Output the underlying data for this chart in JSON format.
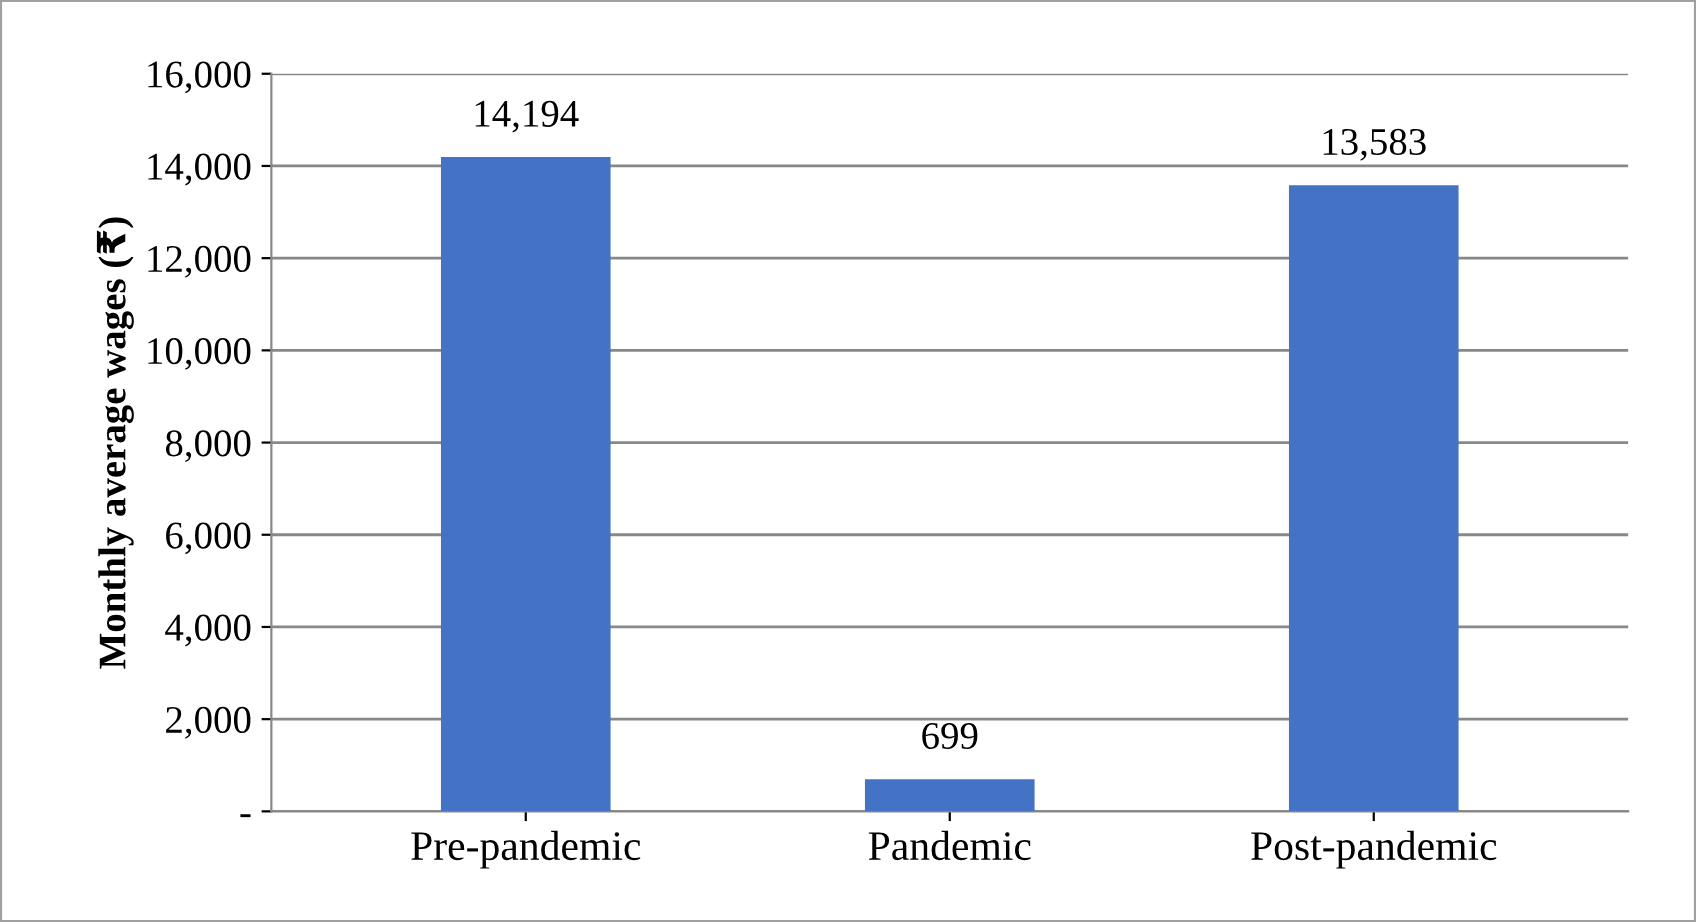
{
  "chart_data": {
    "type": "bar",
    "ylabel": "Monthly average wages (₹)",
    "categories": [
      "Pre-pandemic",
      "Pandemic",
      "Post-pandemic"
    ],
    "values": [
      14194,
      699,
      13583
    ],
    "color": "#4472c4",
    "value_labels": [
      "14,194",
      "699",
      "13,583"
    ],
    "ylim": [
      0,
      16000
    ],
    "yticks": [
      {
        "value": 0,
        "label": "-"
      },
      {
        "value": 2000,
        "label": "2,000"
      },
      {
        "value": 4000,
        "label": "4,000"
      },
      {
        "value": 6000,
        "label": "6,000"
      },
      {
        "value": 8000,
        "label": "8,000"
      },
      {
        "value": 10000,
        "label": "10,000"
      },
      {
        "value": 12000,
        "label": "12,000"
      },
      {
        "value": 14000,
        "label": "14,000"
      },
      {
        "value": 16000,
        "label": "16,000"
      }
    ],
    "grid": "y"
  }
}
